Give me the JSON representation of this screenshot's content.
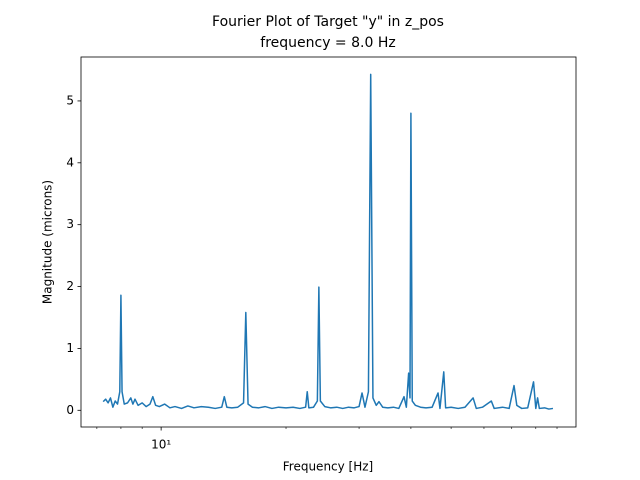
{
  "chart_data": {
    "type": "line",
    "title": "Fourier Plot of Target \"y\" in z_pos",
    "subtitle": "frequency = 8.0 Hz",
    "x_label": "Frequency [Hz]",
    "y_label": "Magnitude (microns)",
    "x_scale": "log",
    "xlim": [
      6.41,
      100
    ],
    "ylim": [
      -0.27,
      5.71
    ],
    "xticks": [
      {
        "value": 10,
        "label": "10¹"
      }
    ],
    "xminor_ticks": [
      7,
      8,
      9,
      20,
      30,
      40,
      50,
      60,
      70,
      80,
      90
    ],
    "yticks": [
      0,
      1,
      2,
      3,
      4,
      5
    ],
    "grid": false,
    "x": [
      7.25,
      7.35,
      7.45,
      7.55,
      7.65,
      7.75,
      7.85,
      7.95,
      8.0,
      8.05,
      8.15,
      8.3,
      8.45,
      8.55,
      8.65,
      8.8,
      9.0,
      9.2,
      9.4,
      9.55,
      9.7,
      9.9,
      10.2,
      10.5,
      10.8,
      11.2,
      11.6,
      12.0,
      12.5,
      13.0,
      13.5,
      14.0,
      14.2,
      14.4,
      14.8,
      15.3,
      15.8,
      16.0,
      16.2,
      16.6,
      17.2,
      17.8,
      18.5,
      19.2,
      20.0,
      20.8,
      21.6,
      22.3,
      22.5,
      22.7,
      23.3,
      23.8,
      24.0,
      24.2,
      24.8,
      25.6,
      26.5,
      27.4,
      28.3,
      29.2,
      30.0,
      30.5,
      31.0,
      31.6,
      32.0,
      32.4,
      33.0,
      33.5,
      34.2,
      35.2,
      36.3,
      37.4,
      38.5,
      39.0,
      39.5,
      39.8,
      40.0,
      40.3,
      41.0,
      42.2,
      43.5,
      45.0,
      46.5,
      47.0,
      48.0,
      48.5,
      50.0,
      52.0,
      54.0,
      56.5,
      57.5,
      59.5,
      62.5,
      63.5,
      66.5,
      69.0,
      70.9,
      72.0,
      74.0,
      76.5,
      79.0,
      80.0,
      80.8,
      81.6,
      84.0,
      86.0,
      88.0
    ],
    "series": [
      {
        "color": "#1f77b4",
        "values": [
          0.14,
          0.18,
          0.12,
          0.2,
          0.05,
          0.15,
          0.1,
          0.3,
          1.86,
          0.3,
          0.1,
          0.12,
          0.2,
          0.1,
          0.18,
          0.08,
          0.12,
          0.06,
          0.1,
          0.22,
          0.08,
          0.06,
          0.1,
          0.04,
          0.06,
          0.03,
          0.07,
          0.04,
          0.06,
          0.05,
          0.03,
          0.05,
          0.22,
          0.05,
          0.04,
          0.05,
          0.12,
          1.58,
          0.1,
          0.05,
          0.04,
          0.06,
          0.03,
          0.05,
          0.04,
          0.05,
          0.03,
          0.05,
          0.3,
          0.04,
          0.05,
          0.15,
          1.99,
          0.15,
          0.06,
          0.04,
          0.05,
          0.03,
          0.05,
          0.04,
          0.06,
          0.28,
          0.05,
          0.3,
          5.43,
          0.2,
          0.08,
          0.14,
          0.05,
          0.04,
          0.05,
          0.03,
          0.22,
          0.05,
          0.6,
          0.2,
          4.8,
          0.15,
          0.08,
          0.05,
          0.04,
          0.05,
          0.28,
          0.03,
          0.62,
          0.04,
          0.05,
          0.03,
          0.05,
          0.2,
          0.03,
          0.05,
          0.15,
          0.03,
          0.05,
          0.03,
          0.4,
          0.08,
          0.03,
          0.04,
          0.46,
          0.03,
          0.2,
          0.03,
          0.04,
          0.02,
          0.03
        ]
      }
    ]
  }
}
